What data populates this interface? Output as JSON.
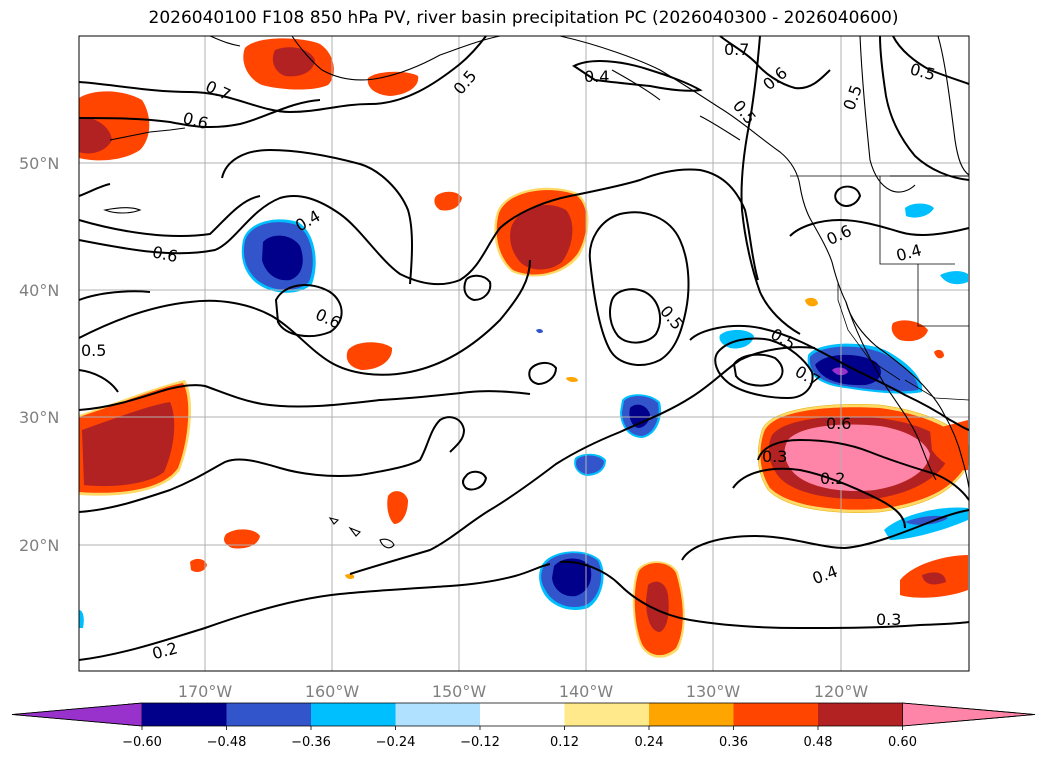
{
  "title": "2026040100 F108 850 hPa PV, river basin precipitation PC (2026040300 - 2026040600)",
  "map": {
    "lat_labels": [
      "50°N",
      "40°N",
      "30°N",
      "20°N"
    ],
    "lon_labels": [
      "170°W",
      "160°W",
      "150°W",
      "140°W",
      "130°W",
      "120°W"
    ],
    "contour_labels": [
      "0.7",
      "0.6",
      "0.5",
      "0.4",
      "0.7",
      "0.6",
      "0.5",
      "0.5",
      "0.5",
      "0.4",
      "0.6",
      "0.6",
      "0.6",
      "0.4",
      "0.5",
      "0.5",
      "0.5",
      "0.7",
      "0.6",
      "0.3",
      "0.2",
      "0.4",
      "0.3",
      "0.2"
    ]
  },
  "colorbar": {
    "ticks": [
      "−0.60",
      "−0.48",
      "−0.36",
      "−0.24",
      "−0.12",
      "0.12",
      "0.24",
      "0.36",
      "0.48",
      "0.60"
    ],
    "colors": [
      "#9932cc",
      "#00008b",
      "#3355cc",
      "#00bfff",
      "#b0e2ff",
      "#ffffff",
      "#ffe98a",
      "#ffa500",
      "#ff4500",
      "#b22222",
      "#ff85a8"
    ]
  }
}
